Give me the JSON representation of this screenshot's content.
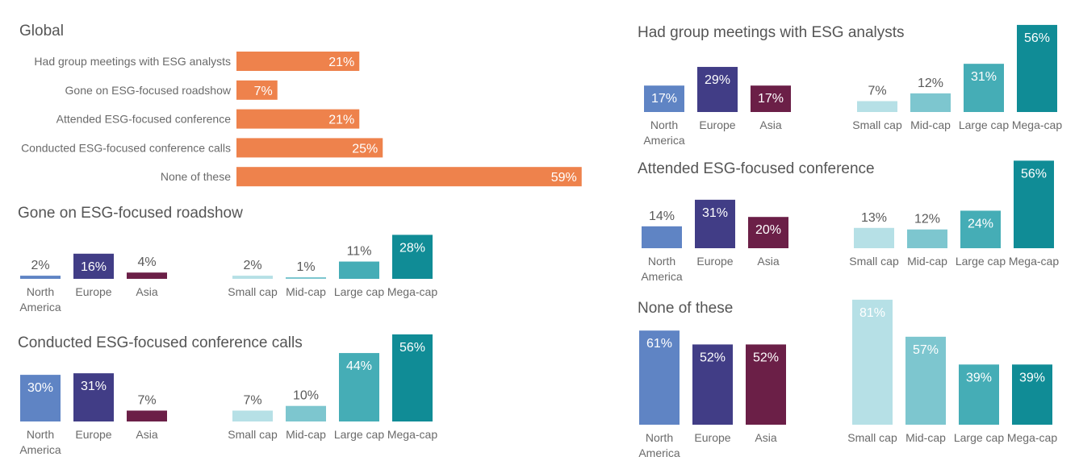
{
  "colors": {
    "global": "#ee824c",
    "north_america": "#5f84c4",
    "europe": "#413d86",
    "asia": "#6b1f47",
    "small_cap": "#b6e0e6",
    "mid_cap": "#7dc6cf",
    "large_cap": "#45adb6",
    "mega_cap": "#108c96"
  },
  "chart_data": [
    {
      "id": "global",
      "type": "bar",
      "orientation": "horizontal",
      "title": "Global",
      "categories": [
        "Had group meetings with ESG analysts",
        "Gone on ESG-focused roadshow",
        "Attended ESG-focused conference",
        "Conducted ESG-focused conference calls",
        "None of these"
      ],
      "values": [
        21,
        7,
        21,
        25,
        59
      ],
      "labels": [
        "21%",
        "7%",
        "21%",
        "25%",
        "59%"
      ],
      "unit": "%"
    },
    {
      "id": "roadshow",
      "type": "bar",
      "title": "Gone on ESG-focused roadshow",
      "groups": [
        {
          "categories": [
            [
              "North",
              "America"
            ],
            [
              "Europe"
            ],
            [
              "Asia"
            ]
          ],
          "values": [
            2,
            16,
            4
          ],
          "labels": [
            "2%",
            "16%",
            "4%"
          ],
          "colors": [
            "north_america",
            "europe",
            "asia"
          ]
        },
        {
          "categories": [
            [
              "Small cap"
            ],
            [
              "Mid-cap"
            ],
            [
              "Large cap"
            ],
            [
              "Mega-cap"
            ]
          ],
          "values": [
            2,
            1,
            11,
            28
          ],
          "labels": [
            "2%",
            "1%",
            "11%",
            "28%"
          ],
          "colors": [
            "small_cap",
            "mid_cap",
            "large_cap",
            "mega_cap"
          ]
        }
      ]
    },
    {
      "id": "calls",
      "type": "bar",
      "title": "Conducted ESG-focused conference calls",
      "groups": [
        {
          "categories": [
            [
              "North",
              "America"
            ],
            [
              "Europe"
            ],
            [
              "Asia"
            ]
          ],
          "values": [
            30,
            31,
            7
          ],
          "labels": [
            "30%",
            "31%",
            "7%"
          ],
          "colors": [
            "north_america",
            "europe",
            "asia"
          ]
        },
        {
          "categories": [
            [
              "Small cap"
            ],
            [
              "Mid-cap"
            ],
            [
              "Large cap"
            ],
            [
              "Mega-cap"
            ]
          ],
          "values": [
            7,
            10,
            44,
            56
          ],
          "labels": [
            "7%",
            "10%",
            "44%",
            "56%"
          ],
          "colors": [
            "small_cap",
            "mid_cap",
            "large_cap",
            "mega_cap"
          ]
        }
      ]
    },
    {
      "id": "meetings",
      "type": "bar",
      "title": "Had group meetings with ESG analysts",
      "groups": [
        {
          "categories": [
            [
              "North",
              "America"
            ],
            [
              "Europe"
            ],
            [
              "Asia"
            ]
          ],
          "values": [
            17,
            29,
            17
          ],
          "labels": [
            "17%",
            "29%",
            "17%"
          ],
          "colors": [
            "north_america",
            "europe",
            "asia"
          ]
        },
        {
          "categories": [
            [
              "Small cap"
            ],
            [
              "Mid-cap"
            ],
            [
              "Large cap"
            ],
            [
              "Mega-cap"
            ]
          ],
          "values": [
            7,
            12,
            31,
            56
          ],
          "labels": [
            "7%",
            "12%",
            "31%",
            "56%"
          ],
          "colors": [
            "small_cap",
            "mid_cap",
            "large_cap",
            "mega_cap"
          ]
        }
      ]
    },
    {
      "id": "conference",
      "type": "bar",
      "title": "Attended ESG-focused conference",
      "groups": [
        {
          "categories": [
            [
              "North",
              "America"
            ],
            [
              "Europe"
            ],
            [
              "Asia"
            ]
          ],
          "values": [
            14,
            31,
            20
          ],
          "labels": [
            "14%",
            "31%",
            "20%"
          ],
          "colors": [
            "north_america",
            "europe",
            "asia"
          ]
        },
        {
          "categories": [
            [
              "Small cap"
            ],
            [
              "Mid-cap"
            ],
            [
              "Large cap"
            ],
            [
              "Mega-cap"
            ]
          ],
          "values": [
            13,
            12,
            24,
            56
          ],
          "labels": [
            "13%",
            "12%",
            "24%",
            "56%"
          ],
          "colors": [
            "small_cap",
            "mid_cap",
            "large_cap",
            "mega_cap"
          ]
        }
      ]
    },
    {
      "id": "none",
      "type": "bar",
      "title": "None of these",
      "groups": [
        {
          "categories": [
            [
              "North",
              "America"
            ],
            [
              "Europe"
            ],
            [
              "Asia"
            ]
          ],
          "values": [
            61,
            52,
            52
          ],
          "labels": [
            "61%",
            "52%",
            "52%"
          ],
          "colors": [
            "north_america",
            "europe",
            "asia"
          ]
        },
        {
          "categories": [
            [
              "Small cap"
            ],
            [
              "Mid-cap"
            ],
            [
              "Large cap"
            ],
            [
              "Mega-cap"
            ]
          ],
          "values": [
            81,
            57,
            39,
            39
          ],
          "labels": [
            "81%",
            "57%",
            "39%",
            "39%"
          ],
          "colors": [
            "small_cap",
            "mid_cap",
            "large_cap",
            "mega_cap"
          ]
        }
      ]
    }
  ]
}
